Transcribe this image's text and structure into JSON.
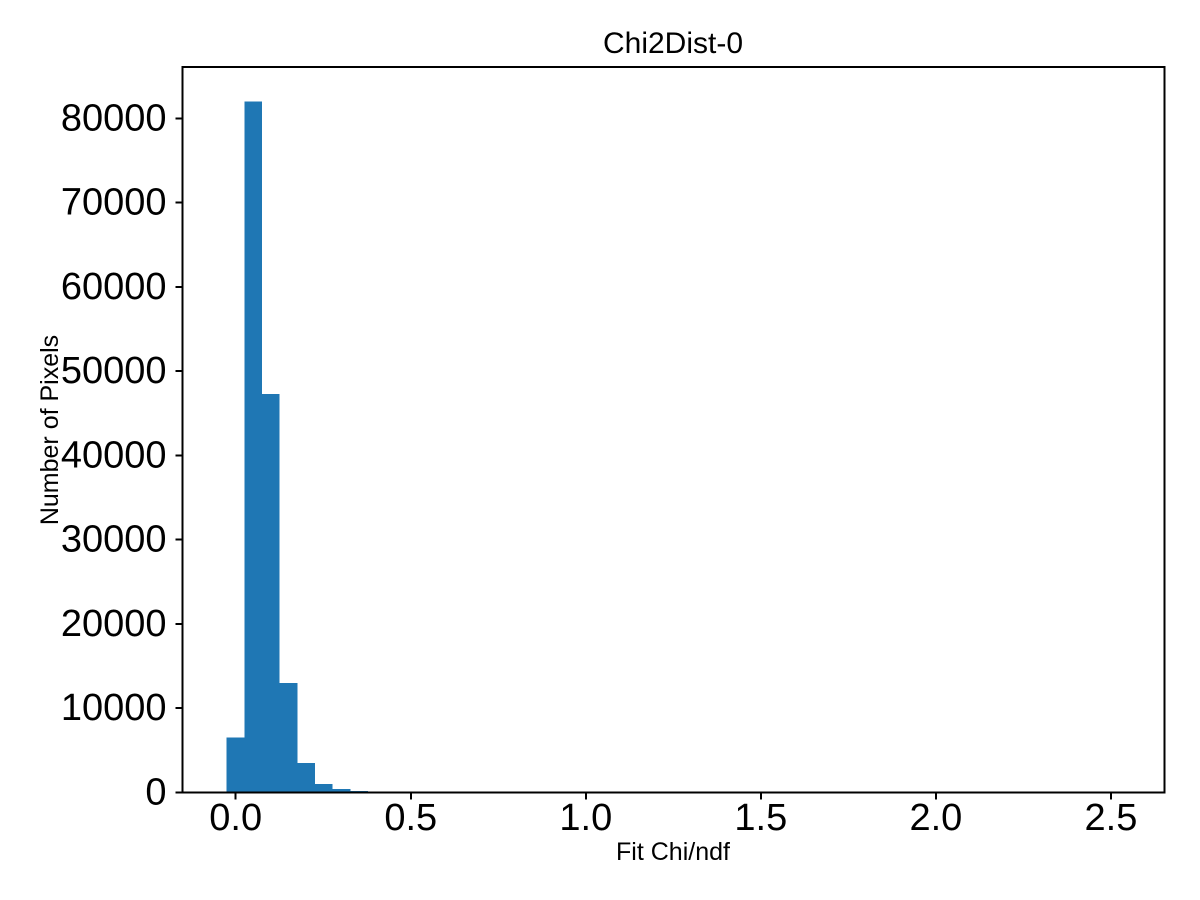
{
  "chart_data": {
    "type": "bar",
    "subtype": "histogram",
    "title": "Chi2Dist-0",
    "xlabel": "Fit Chi/ndf",
    "ylabel": "Number of Pixels",
    "bin_start": -0.026,
    "bin_width": 0.0505,
    "counts": [
      6500,
      82000,
      47300,
      13000,
      3500,
      1030,
      400,
      160,
      130
    ],
    "xticks": [
      0.0,
      0.5,
      1.0,
      1.5,
      2.0,
      2.5
    ],
    "xtick_labels": [
      "0.0",
      "0.5",
      "1.0",
      "1.5",
      "2.0",
      "2.5"
    ],
    "yticks": [
      0,
      10000,
      20000,
      30000,
      40000,
      50000,
      60000,
      70000,
      80000
    ],
    "ytick_labels": [
      "0",
      "10000",
      "20000",
      "30000",
      "40000",
      "50000",
      "60000",
      "70000",
      "80000"
    ],
    "xlim": [
      -0.152,
      2.653
    ],
    "ylim": [
      0,
      86100
    ],
    "grid": false,
    "legend": null,
    "colors": {
      "bar": "#1f77b4",
      "spine": "#000000",
      "text": "#000000",
      "background": "#ffffff"
    }
  }
}
